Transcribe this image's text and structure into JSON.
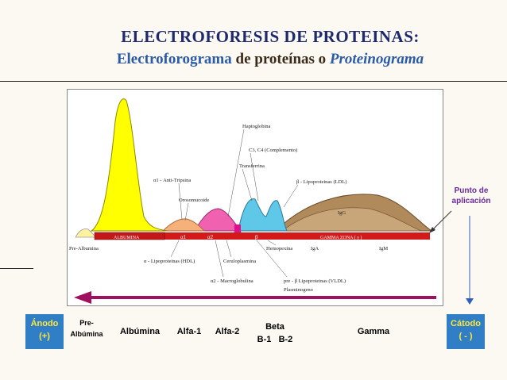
{
  "header": {
    "title": "ELECTROFORESIS DE PROTEINAS:",
    "subtitle_part1": "Electroforograma",
    "subtitle_part2": "de proteínas o",
    "subtitle_part3": "Proteinograma"
  },
  "diagram": {
    "labels": {
      "haptoglobina": "Haptoglobina",
      "c3c4": "C3, C4 (Complemento)",
      "transferrina": "Transferrina",
      "a1_antitripsina": "α1 - Anti-Tripsina",
      "b_ldl": "β - Lipoproteinas (LDL)",
      "orosomucoide": "Orosomucoide",
      "igg": "IgG",
      "pre_albumina": "Pre-Albumina",
      "hemopexina": "Hemopexina",
      "iga": "IgA",
      "igm": "IgM",
      "a_hdl": "α - Lipoproteinas (HDL)",
      "ceruloplasmina": "Ceruloplasmina",
      "a2_macro": "α2 - Macroglobulina",
      "pre_b_vldl": "pre - β Lipoproteinas (VLDL)",
      "plasminogeno": "Plasminogeno",
      "band_albumina": "ALBUMINA",
      "band_a1": "α1",
      "band_a2": "α2",
      "band_b": "β",
      "band_gamma": "GAMMA ZONA ( γ )"
    },
    "colors": {
      "albumin": "#ffff00",
      "alpha1": "#f6b07a",
      "alpha2": "#f062b0",
      "beta": "#5fc8e8",
      "gamma": "#b08a5a",
      "band": "#d21a1a",
      "arrow": "#a0105e"
    }
  },
  "punto": {
    "line1": "Punto de",
    "line2": "aplicación"
  },
  "bottom_axis": {
    "anodo": "Ánodo",
    "anodo_sign": "(+)",
    "pre_albumina_1": "Pre-",
    "pre_albumina_2": "Albúmina",
    "albumina": "Albúmina",
    "alfa1": "Alfa-1",
    "alfa2": "Alfa-2",
    "beta": "Beta",
    "b1": "B-1",
    "b2": "B-2",
    "gamma": "Gamma",
    "catodo": "Cátodo",
    "catodo_sign": "( - )"
  }
}
